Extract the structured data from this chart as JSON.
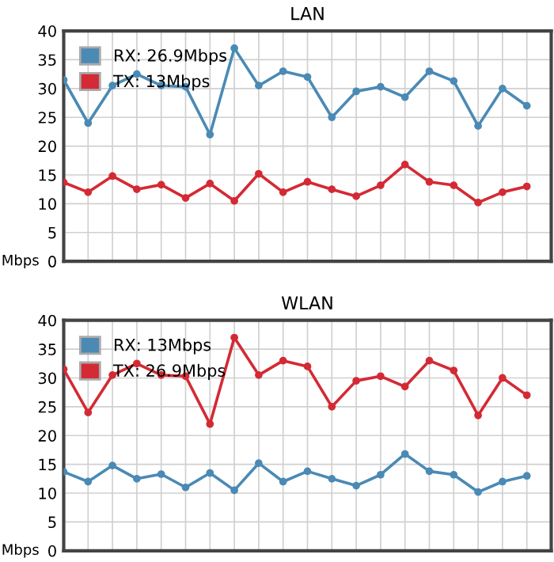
{
  "chart_data": [
    {
      "type": "line",
      "title": "LAN",
      "ylabel": "Mbps",
      "categories": [
        null,
        null,
        null,
        null,
        null,
        null,
        null,
        null,
        null,
        null,
        null,
        null,
        null,
        null,
        null,
        null,
        null,
        null,
        null,
        null
      ],
      "ylim": [
        0,
        40
      ],
      "yticks": [
        0,
        5,
        10,
        15,
        20,
        25,
        30,
        35,
        40
      ],
      "grid": true,
      "legend": "top left",
      "marker": "circle",
      "tick_labels": "y",
      "series": [
        {
          "name": "RX: 26.9Mbps",
          "color": "#4a8ab5",
          "values": [
            31.5,
            24,
            30.5,
            32.5,
            30.5,
            30.3,
            22,
            37,
            30.5,
            33,
            32,
            25,
            29.5,
            30.3,
            28.5,
            33,
            31.3,
            23.5,
            30,
            27
          ]
        },
        {
          "name": "TX: 13Mbps",
          "color": "#d42a35",
          "values": [
            13.7,
            12,
            14.8,
            12.5,
            13.3,
            11,
            13.5,
            10.5,
            15.2,
            12,
            13.8,
            12.5,
            11.3,
            13.2,
            16.8,
            13.8,
            13.2,
            10.2,
            12,
            13
          ]
        }
      ]
    },
    {
      "type": "line",
      "title": "WLAN",
      "ylabel": "Mbps",
      "categories": [
        null,
        null,
        null,
        null,
        null,
        null,
        null,
        null,
        null,
        null,
        null,
        null,
        null,
        null,
        null,
        null,
        null,
        null,
        null,
        null
      ],
      "ylim": [
        0,
        40
      ],
      "yticks": [
        0,
        5,
        10,
        15,
        20,
        25,
        30,
        35,
        40
      ],
      "grid": true,
      "legend": "top left",
      "marker": "circle",
      "tick_labels": "y",
      "series": [
        {
          "name": "RX: 13Mbps",
          "color": "#4a8ab5",
          "values": [
            13.7,
            12,
            14.8,
            12.5,
            13.3,
            11,
            13.5,
            10.5,
            15.2,
            12,
            13.8,
            12.5,
            11.3,
            13.2,
            16.8,
            13.8,
            13.2,
            10.2,
            12,
            13
          ]
        },
        {
          "name": "TX: 26.9Mbps",
          "color": "#d42a35",
          "values": [
            31.5,
            24,
            30.5,
            32.5,
            30.5,
            30.3,
            22,
            37,
            30.5,
            33,
            32,
            25,
            29.5,
            30.3,
            28.5,
            33,
            31.3,
            23.5,
            30,
            27
          ]
        }
      ]
    }
  ]
}
